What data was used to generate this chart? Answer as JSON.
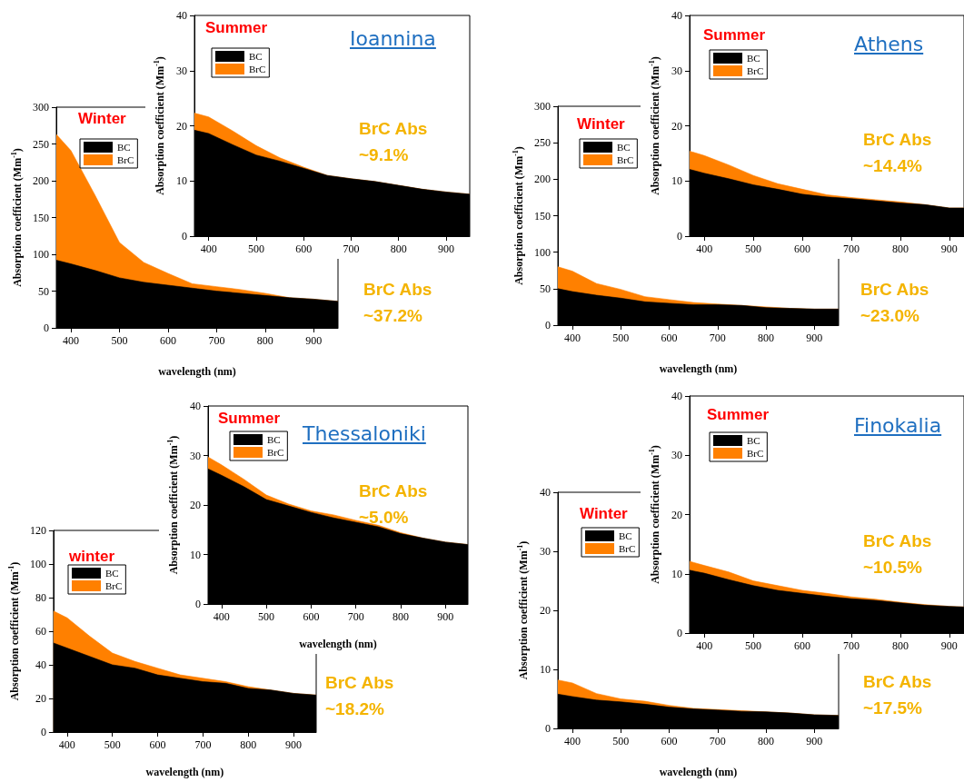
{
  "chart_data": [
    {
      "type": "area",
      "stacked": true,
      "title": "Winter",
      "xlabel": "wavelength (nm)",
      "ylabel": "Absorption coefficient (Mm$^{-1}$)",
      "legend": "top left",
      "annotations": [
        "BrC Abs ~37.2%"
      ],
      "x": [
        370,
        400,
        450,
        500,
        550,
        600,
        650,
        700,
        750,
        800,
        850,
        900,
        950
      ],
      "series": [
        {
          "name": "BC",
          "color": "#000000",
          "values": [
            92,
            87,
            78,
            68,
            62,
            58,
            54,
            50,
            47,
            44,
            41,
            39,
            36
          ]
        },
        {
          "name": "BrC",
          "color": "#ff8000",
          "values": [
            171,
            154,
            102,
            48,
            27,
            16,
            6,
            6,
            5,
            3,
            0,
            0,
            0
          ]
        }
      ],
      "xlim": [
        370,
        950
      ],
      "xticks": [
        400,
        500,
        600,
        700,
        800,
        900
      ],
      "ylim": [
        0,
        300
      ],
      "yticks": [
        0,
        50,
        100,
        150,
        200,
        250,
        300
      ]
    },
    {
      "type": "area",
      "stacked": true,
      "title": "Summer",
      "subtitle": "Ioannina",
      "ylabel": "Absorption coefficient (Mm$^{-1}$)",
      "legend": "top left",
      "annotations": [
        "BrC Abs ~9.1%"
      ],
      "x": [
        370,
        400,
        450,
        500,
        550,
        600,
        650,
        700,
        750,
        800,
        850,
        900,
        950
      ],
      "series": [
        {
          "name": "BC",
          "color": "#000000",
          "values": [
            19.2,
            18.6,
            16.6,
            14.7,
            13.6,
            12.3,
            11.0,
            10.4,
            9.9,
            9.2,
            8.5,
            8.0,
            7.6
          ]
        },
        {
          "name": "BrC",
          "color": "#ff8000",
          "values": [
            3.1,
            3.0,
            2.5,
            1.7,
            0.6,
            0.2,
            0,
            0,
            0,
            0,
            0,
            0,
            0
          ]
        }
      ],
      "xlim": [
        370,
        950
      ],
      "xticks": [
        400,
        500,
        600,
        700,
        800,
        900
      ],
      "ylim": [
        0,
        40
      ],
      "yticks": [
        0,
        10,
        20,
        30,
        40
      ]
    },
    {
      "type": "area",
      "stacked": true,
      "title": "Winter",
      "xlabel": "wavelength (nm)",
      "ylabel": "Absorption coefficient (Mm$^{-1}$)",
      "legend": "top left",
      "annotations": [
        "BrC Abs ~23.0%"
      ],
      "x": [
        370,
        400,
        450,
        500,
        550,
        600,
        650,
        700,
        750,
        800,
        850,
        900,
        950
      ],
      "series": [
        {
          "name": "BC",
          "color": "#000000",
          "values": [
            50,
            46,
            41,
            37,
            32,
            30,
            28,
            28,
            27,
            24,
            23,
            22,
            22
          ]
        },
        {
          "name": "BrC",
          "color": "#ff8000",
          "values": [
            30,
            28,
            16,
            12,
            7,
            5,
            3,
            1,
            0,
            1,
            0,
            0,
            0
          ]
        }
      ],
      "xlim": [
        370,
        950
      ],
      "xticks": [
        400,
        500,
        600,
        700,
        800,
        900
      ],
      "ylim": [
        0,
        300
      ],
      "yticks": [
        0,
        50,
        100,
        150,
        200,
        250,
        300
      ]
    },
    {
      "type": "area",
      "stacked": true,
      "title": "Summer",
      "subtitle": "Athens",
      "ylabel": "Absorption coefficient (Mm$^{-1}$)",
      "legend": "top left",
      "annotations": [
        "BrC Abs ~14.4%"
      ],
      "x": [
        370,
        400,
        450,
        500,
        550,
        600,
        650,
        700,
        750,
        800,
        850,
        900,
        930
      ],
      "series": [
        {
          "name": "BC",
          "color": "#000000",
          "values": [
            12.1,
            11.4,
            10.4,
            9.3,
            8.5,
            7.6,
            7.1,
            6.8,
            6.4,
            6.0,
            5.7,
            5.1,
            5.1
          ]
        },
        {
          "name": "BrC",
          "color": "#ff8000",
          "values": [
            3.3,
            3.2,
            2.5,
            1.7,
            1.0,
            0.9,
            0.4,
            0.2,
            0.2,
            0.2,
            0,
            0,
            0
          ]
        }
      ],
      "xlim": [
        370,
        930
      ],
      "xticks": [
        400,
        500,
        600,
        700,
        800,
        900
      ],
      "ylim": [
        0,
        40
      ],
      "yticks": [
        0,
        10,
        20,
        30,
        40
      ]
    },
    {
      "type": "area",
      "stacked": true,
      "title": "winter",
      "xlabel": "wavelength (nm)",
      "ylabel": "Absorption coefficient (Mm$^{-1}$)",
      "legend": "top left",
      "annotations": [
        "BrC Abs ~18.2%"
      ],
      "x": [
        370,
        400,
        450,
        500,
        550,
        600,
        650,
        700,
        750,
        800,
        850,
        900,
        950
      ],
      "series": [
        {
          "name": "BC",
          "color": "#000000",
          "values": [
            53,
            50,
            45,
            40,
            38,
            34,
            32,
            30,
            29,
            26,
            25,
            23,
            22
          ]
        },
        {
          "name": "BrC",
          "color": "#ff8000",
          "values": [
            19,
            18,
            12,
            7,
            4,
            4,
            2,
            2,
            1,
            1,
            0,
            0,
            0
          ]
        }
      ],
      "xlim": [
        370,
        950
      ],
      "xticks": [
        400,
        500,
        600,
        700,
        800,
        900
      ],
      "ylim": [
        0,
        120
      ],
      "yticks": [
        0,
        20,
        40,
        60,
        80,
        100,
        120
      ]
    },
    {
      "type": "area",
      "stacked": true,
      "title": "Summer",
      "subtitle": "Thessaloniki",
      "xlabel": "wavelength (nm)",
      "ylabel": "Absorption coefficient (Mm$^{-1}$)",
      "legend": "top left",
      "annotations": [
        "BrC Abs ~5.0%"
      ],
      "x": [
        370,
        400,
        450,
        500,
        550,
        600,
        650,
        700,
        750,
        800,
        850,
        900,
        950
      ],
      "series": [
        {
          "name": "BC",
          "color": "#000000",
          "values": [
            27.3,
            26.0,
            23.7,
            21.1,
            19.8,
            18.5,
            17.4,
            16.5,
            15.6,
            14.2,
            13.3,
            12.5,
            12.0
          ]
        },
        {
          "name": "BrC",
          "color": "#ff8000",
          "values": [
            2.4,
            2.1,
            1.5,
            0.9,
            0.4,
            0.3,
            0.6,
            0.4,
            0.3,
            0.2,
            0,
            0,
            0
          ]
        }
      ],
      "xlim": [
        370,
        950
      ],
      "xticks": [
        400,
        500,
        600,
        700,
        800,
        900
      ],
      "ylim": [
        0,
        40
      ],
      "yticks": [
        0,
        10,
        20,
        30,
        40
      ]
    },
    {
      "type": "area",
      "stacked": true,
      "title": "Winter",
      "xlabel": "wavelength (nm)",
      "ylabel": "Absorption coefficient (Mm$^{-1}$)",
      "legend": "top left",
      "annotations": [
        "BrC Abs ~17.5%"
      ],
      "x": [
        370,
        400,
        450,
        500,
        550,
        600,
        650,
        700,
        750,
        800,
        850,
        900,
        950
      ],
      "series": [
        {
          "name": "BC",
          "color": "#000000",
          "values": [
            5.8,
            5.4,
            4.8,
            4.5,
            4.1,
            3.6,
            3.3,
            3.1,
            2.9,
            2.8,
            2.6,
            2.3,
            2.2
          ]
        },
        {
          "name": "BrC",
          "color": "#ff8000",
          "values": [
            2.4,
            2.3,
            1.1,
            0.5,
            0.5,
            0.3,
            0.1,
            0.1,
            0.1,
            0,
            0,
            0,
            0
          ]
        }
      ],
      "xlim": [
        370,
        950
      ],
      "xticks": [
        400,
        500,
        600,
        700,
        800,
        900
      ],
      "ylim": [
        0,
        40
      ],
      "yticks": [
        0,
        10,
        20,
        30,
        40
      ]
    },
    {
      "type": "area",
      "stacked": true,
      "title": "Summer",
      "subtitle": "Finokalia",
      "ylabel": "Absorption coefficient (Mm$^{-1}$)",
      "legend": "top left",
      "annotations": [
        "BrC Abs ~10.5%"
      ],
      "x": [
        370,
        400,
        450,
        500,
        550,
        600,
        650,
        700,
        750,
        800,
        850,
        900,
        930
      ],
      "series": [
        {
          "name": "BC",
          "color": "#000000",
          "values": [
            10.6,
            10.1,
            9.0,
            8.0,
            7.2,
            6.7,
            6.2,
            5.8,
            5.5,
            5.1,
            4.7,
            4.5,
            4.4
          ]
        },
        {
          "name": "BrC",
          "color": "#ff8000",
          "values": [
            1.5,
            1.3,
            1.3,
            0.8,
            0.8,
            0.5,
            0.5,
            0.3,
            0.2,
            0.1,
            0.1,
            0,
            0
          ]
        }
      ],
      "xlim": [
        370,
        930
      ],
      "xticks": [
        400,
        500,
        600,
        700,
        800,
        900
      ],
      "ylim": [
        0,
        40
      ],
      "yticks": [
        0,
        10,
        20,
        30,
        40
      ]
    }
  ]
}
